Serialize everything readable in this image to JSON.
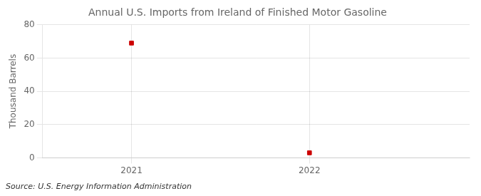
{
  "chart_data": {
    "type": "scatter",
    "title": "Annual U.S. Imports from Ireland of Finished Motor Gasoline",
    "ylabel": "Thousand Barrels",
    "annotations": [
      "Source: U.S. Energy Information Administration"
    ],
    "x": [
      2021,
      2022
    ],
    "values": [
      69,
      3
    ],
    "color": "#cc0000",
    "marker": "square",
    "xlim": [
      2020.5,
      2022.9
    ],
    "xticks": [
      2021,
      2022
    ],
    "ylim": [
      0,
      80
    ],
    "yticks": [
      0,
      20,
      40,
      60,
      80
    ],
    "grid": true
  }
}
